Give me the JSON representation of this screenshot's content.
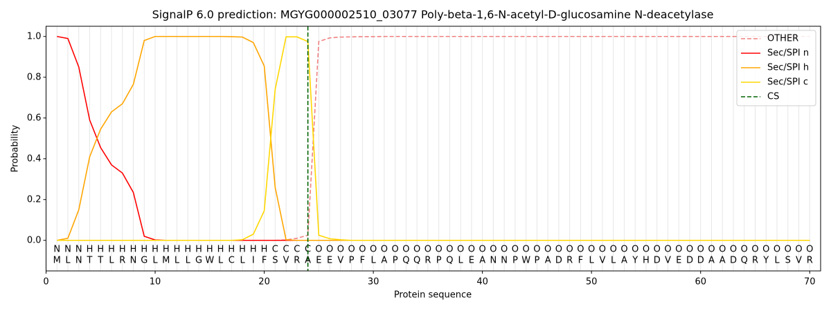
{
  "chart_data": {
    "type": "line",
    "title": "SignalP 6.0 prediction: MGYG000002510_03077 Poly-beta-1,6-N-acetyl-D-glucosamine N-deacetylase",
    "x_label": "Protein sequence",
    "y_label": "Probability",
    "xlim": [
      0,
      71
    ],
    "ylim": [
      -0.15,
      1.05
    ],
    "xticks": [
      0,
      10,
      20,
      30,
      40,
      50,
      60,
      70
    ],
    "yticks": [
      {
        "value": 0,
        "label": "0.0"
      },
      0.2,
      0.4,
      0.6,
      0.8,
      {
        "value": 1,
        "label": "1.0"
      }
    ],
    "legend": "upper right",
    "x": [
      1,
      2,
      3,
      4,
      5,
      6,
      7,
      8,
      9,
      10,
      11,
      12,
      13,
      14,
      15,
      16,
      17,
      18,
      19,
      20,
      21,
      22,
      23,
      24,
      25,
      26,
      27,
      28,
      29,
      30,
      31,
      32,
      33,
      34,
      35,
      36,
      37,
      38,
      39,
      40,
      41,
      42,
      43,
      44,
      45,
      46,
      47,
      48,
      49,
      50,
      51,
      52,
      53,
      54,
      55,
      56,
      57,
      58,
      59,
      60,
      61,
      62,
      63,
      64,
      65,
      66,
      67,
      68,
      69,
      70
    ],
    "sequence": [
      "M",
      "L",
      "N",
      "T",
      "T",
      "L",
      "R",
      "N",
      "G",
      "L",
      "M",
      "L",
      "L",
      "G",
      "W",
      "L",
      "C",
      "L",
      "I",
      "F",
      "S",
      "V",
      "R",
      "A",
      "E",
      "E",
      "V",
      "P",
      "F",
      "L",
      "A",
      "P",
      "Q",
      "Q",
      "R",
      "P",
      "Q",
      "L",
      "E",
      "A",
      "N",
      "N",
      "P",
      "W",
      "P",
      "A",
      "D",
      "R",
      "F",
      "L",
      "V",
      "L",
      "A",
      "Y",
      "H",
      "D",
      "V",
      "E",
      "D",
      "D",
      "A",
      "A",
      "D",
      "Q",
      "R",
      "Y",
      "L",
      "S",
      "V",
      "R"
    ],
    "labels": [
      "N",
      "N",
      "N",
      "H",
      "H",
      "H",
      "H",
      "H",
      "H",
      "H",
      "H",
      "H",
      "H",
      "H",
      "H",
      "H",
      "H",
      "H",
      "H",
      "H",
      "C",
      "C",
      "C",
      "C",
      "O",
      "O",
      "O",
      "O",
      "O",
      "O",
      "O",
      "O",
      "O",
      "O",
      "O",
      "O",
      "O",
      "O",
      "O",
      "O",
      "O",
      "O",
      "O",
      "O",
      "O",
      "O",
      "O",
      "O",
      "O",
      "O",
      "O",
      "O",
      "O",
      "O",
      "O",
      "O",
      "O",
      "O",
      "O",
      "O",
      "O",
      "O",
      "O",
      "O",
      "O",
      "O",
      "O",
      "O",
      "O",
      "O"
    ],
    "label_colors": {
      "N": "#ff0000",
      "H": "#ffa500",
      "C": "#ffc200",
      "O": "#808080"
    },
    "series": [
      {
        "name": "OTHER",
        "color": "#f08080",
        "linestyle": "dashed",
        "values": [
          0,
          0,
          0,
          0,
          0,
          0,
          0,
          0,
          0,
          0,
          0,
          0,
          0,
          0,
          0,
          0,
          0,
          0,
          0,
          0,
          0,
          0.002,
          0.01,
          0.025,
          0.975,
          0.993,
          0.997,
          0.998,
          0.999,
          0.999,
          1,
          1,
          1,
          1,
          1,
          1,
          1,
          1,
          1,
          1,
          1,
          1,
          1,
          1,
          1,
          1,
          1,
          1,
          1,
          1,
          1,
          1,
          1,
          1,
          1,
          1,
          1,
          1,
          1,
          1,
          1,
          1,
          1,
          1,
          1,
          1,
          1,
          1,
          1,
          1
        ]
      },
      {
        "name": "Sec/SPI n",
        "color": "#ff0000",
        "linestyle": "solid",
        "values": [
          1,
          0.99,
          0.85,
          0.59,
          0.455,
          0.37,
          0.33,
          0.235,
          0.02,
          0.002,
          0,
          0,
          0,
          0,
          0,
          0,
          0,
          0,
          0,
          0,
          0,
          0,
          0,
          0,
          0,
          0,
          0,
          0,
          0,
          0,
          0,
          0,
          0,
          0,
          0,
          0,
          0,
          0,
          0,
          0,
          0,
          0,
          0,
          0,
          0,
          0,
          0,
          0,
          0,
          0,
          0,
          0,
          0,
          0,
          0,
          0,
          0,
          0,
          0,
          0,
          0,
          0,
          0,
          0,
          0,
          0,
          0,
          0,
          0,
          0
        ]
      },
      {
        "name": "Sec/SPI h",
        "color": "#ffa500",
        "linestyle": "solid",
        "values": [
          0,
          0.01,
          0.15,
          0.41,
          0.545,
          0.63,
          0.67,
          0.765,
          0.98,
          1,
          1,
          1,
          1,
          1,
          1,
          1,
          0.999,
          0.997,
          0.97,
          0.855,
          0.26,
          0.003,
          0,
          0,
          0,
          0,
          0,
          0,
          0,
          0,
          0,
          0,
          0,
          0,
          0,
          0,
          0,
          0,
          0,
          0,
          0,
          0,
          0,
          0,
          0,
          0,
          0,
          0,
          0,
          0,
          0,
          0,
          0,
          0,
          0,
          0,
          0,
          0,
          0,
          0,
          0,
          0,
          0,
          0,
          0,
          0,
          0,
          0,
          0,
          0
        ]
      },
      {
        "name": "Sec/SPI c",
        "color": "#ffd700",
        "linestyle": "solid",
        "values": [
          0,
          0,
          0,
          0,
          0,
          0,
          0,
          0,
          0,
          0,
          0,
          0,
          0,
          0,
          0,
          0,
          0,
          0.003,
          0.03,
          0.145,
          0.74,
          0.998,
          0.998,
          0.975,
          0.025,
          0.008,
          0.003,
          0,
          0,
          0,
          0,
          0,
          0,
          0,
          0,
          0,
          0,
          0,
          0,
          0,
          0,
          0,
          0,
          0,
          0,
          0,
          0,
          0,
          0,
          0,
          0,
          0,
          0,
          0,
          0,
          0,
          0,
          0,
          0,
          0,
          0,
          0,
          0,
          0,
          0,
          0,
          0,
          0,
          0,
          0
        ]
      }
    ],
    "cs": {
      "name": "CS",
      "x": 24,
      "color": "#006400"
    }
  }
}
